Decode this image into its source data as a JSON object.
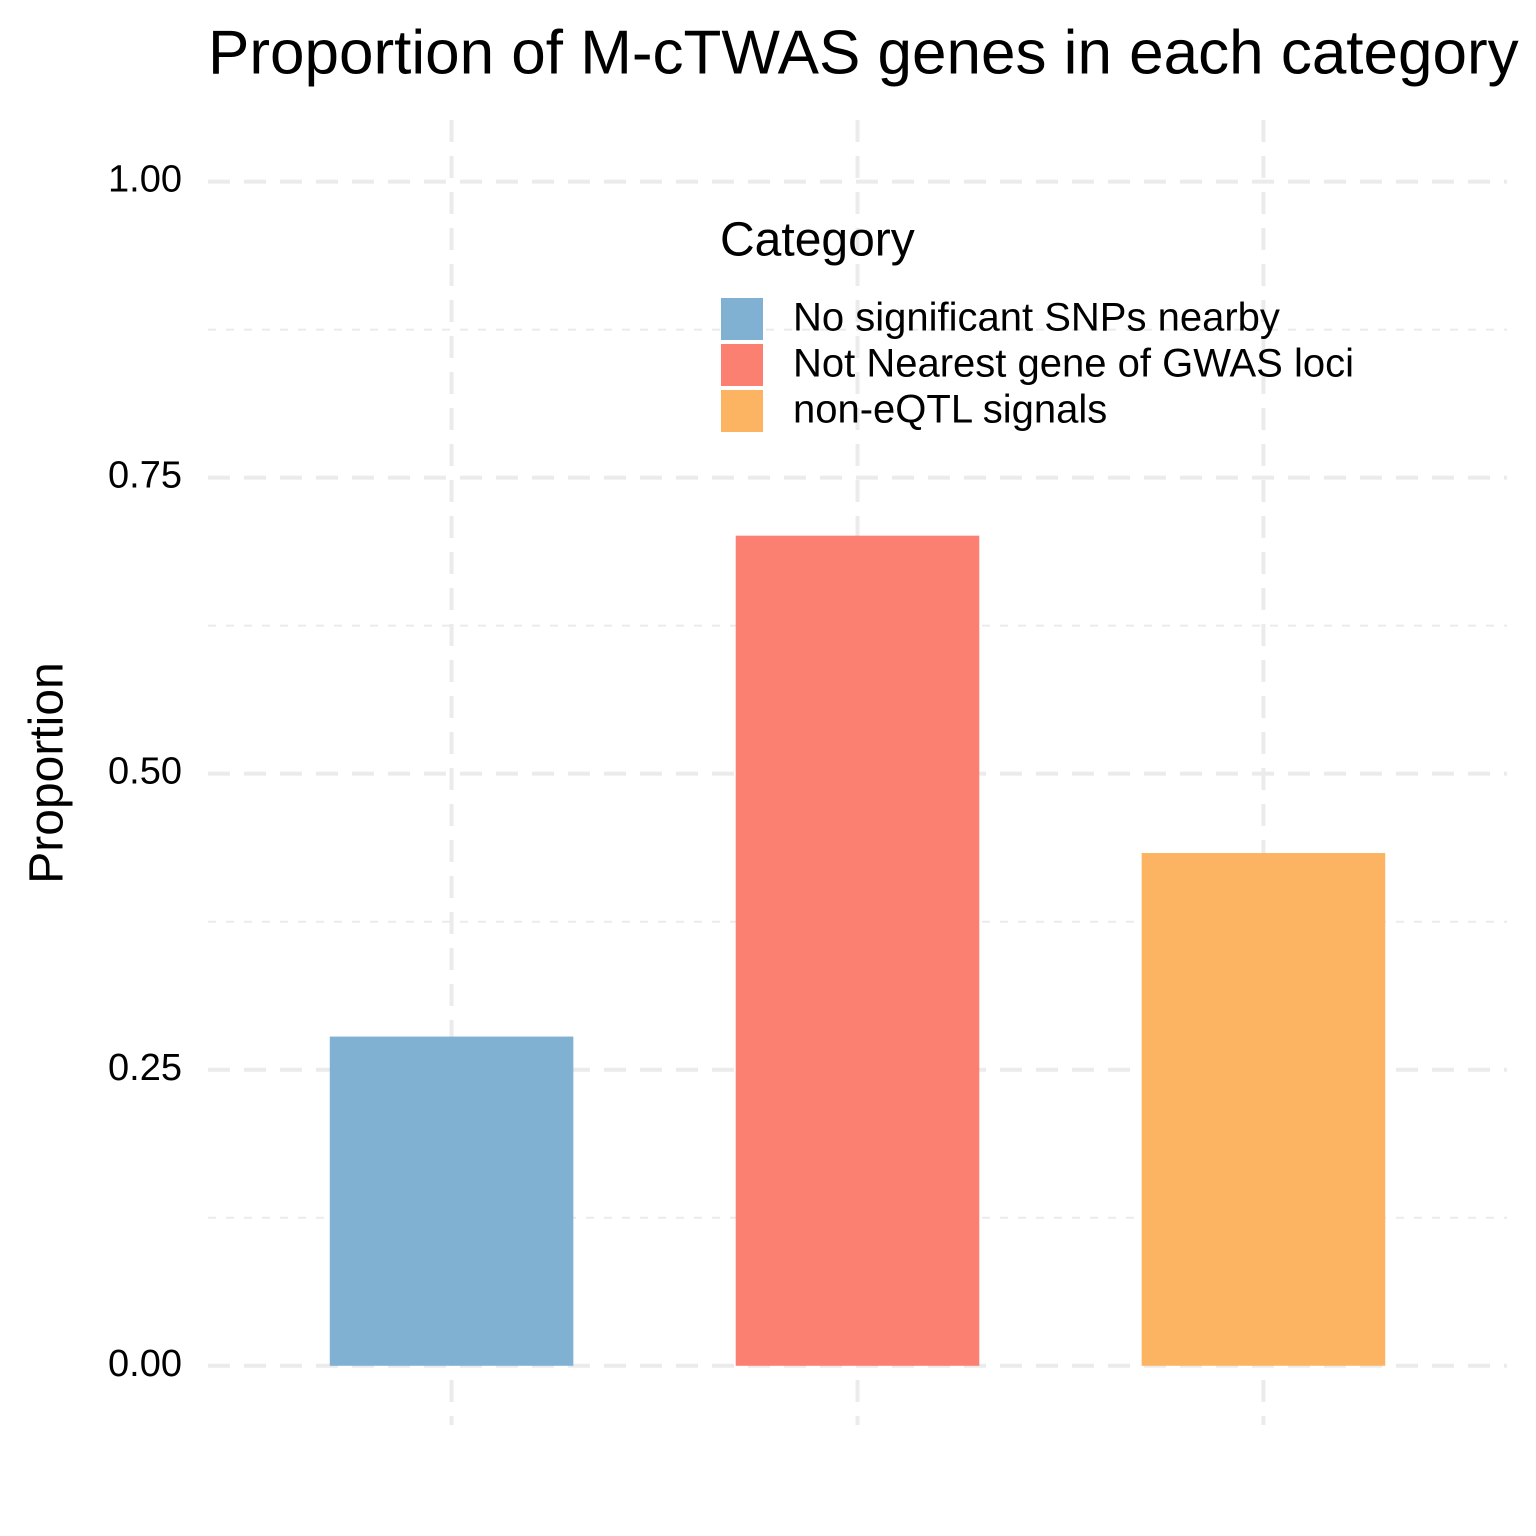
{
  "chart_data": {
    "type": "bar",
    "title": "Proportion of M-cTWAS genes in each category",
    "y_label": "Proportion",
    "legend_title": "Category",
    "categories": [
      "No significant SNPs nearby",
      "Not Nearest gene of GWAS loci",
      "non-eQTL signals"
    ],
    "colors": [
      "#80b1d3",
      "#fb8072",
      "#fdb462"
    ],
    "values": [
      0.278,
      0.701,
      0.433
    ],
    "ylim": [
      -0.05,
      1.052
    ],
    "yticks": [
      {
        "value": 0,
        "label": "0.00"
      },
      {
        "value": 0.25,
        "label": "0.25"
      },
      {
        "value": 0.5,
        "label": "0.50"
      },
      {
        "value": 0.75,
        "label": "0.75"
      },
      {
        "value": 1,
        "label": "1.00"
      }
    ],
    "minor_yticks": [
      0.125,
      0.375,
      0.625,
      0.875
    ],
    "grid": true,
    "legend_position": "top"
  }
}
